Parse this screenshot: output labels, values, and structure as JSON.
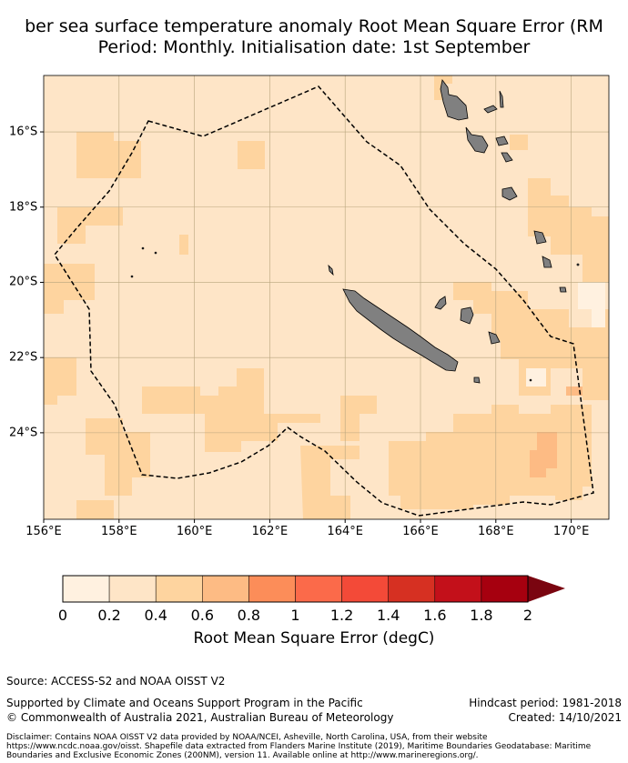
{
  "title": {
    "line1": "ber sea surface temperature anomaly Root Mean Square Error (RM",
    "line2": "Period: Monthly. Initialisation date: 1st September"
  },
  "map": {
    "lon_range": [
      156,
      171
    ],
    "lat_range": [
      -26.3,
      -14.5
    ],
    "lon_labels": [
      "156°E",
      "158°E",
      "160°E",
      "162°E",
      "164°E",
      "166°E",
      "168°E",
      "170°E"
    ],
    "lat_labels": [
      "16°S",
      "18°S",
      "20°S",
      "22°S",
      "24°S"
    ],
    "land_color": "#808080",
    "grid": true
  },
  "colorbar": {
    "ticks": [
      "0",
      "0.2",
      "0.4",
      "0.6",
      "0.8",
      "1",
      "1.2",
      "1.4",
      "1.6",
      "1.8",
      "2"
    ],
    "colors": [
      "#fff1e0",
      "#fee5c7",
      "#fed49f",
      "#fdbb84",
      "#fc8d59",
      "#fb6a4a",
      "#f34a38",
      "#d63022",
      "#c3101a",
      "#a6000f"
    ],
    "extend_color": "#7a0510",
    "label": "Root Mean Square Error (degC)"
  },
  "footer": {
    "source": "Source: ACCESS-S2 and NOAA OISST V2",
    "supported": "Supported by Climate and Oceans Support Program in the Pacific",
    "copyright": "© Commonwealth of Australia 2021, Australian Bureau of Meteorology",
    "hindcast": "Hindcast period: 1981-2018",
    "created": "Created: 14/10/2021",
    "disclaimer": "Disclaimer: Contains NOAA OISST V2 data provided by NOAA/NCEI, Asheville, North Carolina, USA, from their website https://www.ncdc.noaa.gov/oisst. Shapefile data extracted from Flanders Marine Institute (2019), Maritime Boundaries Geodatabase: Maritime Boundaries and Exclusive Economic Zones (200NM), version 11. Available online at http://www.marineregions.org/."
  }
}
